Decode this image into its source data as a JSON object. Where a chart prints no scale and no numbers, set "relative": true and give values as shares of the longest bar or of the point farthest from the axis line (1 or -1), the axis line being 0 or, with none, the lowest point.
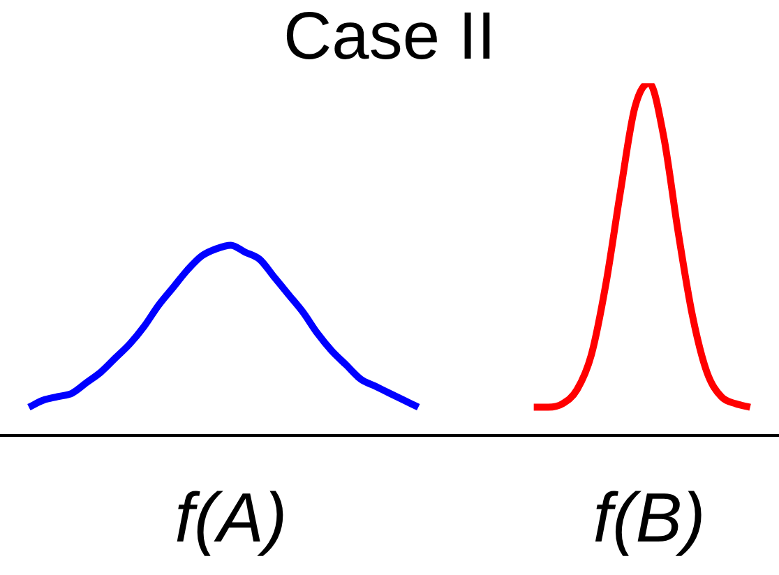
{
  "chart_data": {
    "type": "line",
    "title": "Case II",
    "relative": true,
    "marker": "none",
    "categories": [
      null,
      null,
      null,
      null,
      null,
      null,
      null,
      null,
      null,
      null,
      null,
      null,
      null,
      null,
      null,
      null,
      null,
      null,
      null,
      null,
      null,
      null,
      null,
      null,
      null,
      null,
      null,
      null,
      null,
      null,
      null,
      null,
      null,
      null,
      null,
      null,
      null,
      null,
      null,
      null,
      null,
      null,
      null,
      null,
      null,
      null,
      null,
      null,
      null,
      null,
      null,
      null,
      null,
      null,
      null
    ],
    "series": [
      {
        "name": "f(A)",
        "color": "#0000ff",
        "values": [
          null,
          null,
          0.08,
          0.1,
          0.11,
          0.12,
          0.15,
          0.18,
          0.22,
          0.26,
          0.31,
          0.37,
          0.42,
          0.47,
          0.51,
          0.53,
          0.54,
          0.52,
          0.5,
          0.45,
          0.4,
          0.35,
          0.29,
          0.24,
          0.2,
          0.16,
          0.14,
          0.12,
          0.1,
          0.08,
          null,
          null,
          null,
          null,
          null,
          null,
          null,
          null,
          null,
          null,
          null,
          null,
          null,
          null,
          null,
          null,
          null,
          null,
          null,
          null,
          null,
          null,
          null,
          null,
          null
        ]
      },
      {
        "name": "f(B)",
        "color": "#ff0000",
        "values": [
          null,
          null,
          null,
          null,
          null,
          null,
          null,
          null,
          null,
          null,
          null,
          null,
          null,
          null,
          null,
          null,
          null,
          null,
          null,
          null,
          null,
          null,
          null,
          null,
          null,
          null,
          null,
          null,
          null,
          null,
          null,
          null,
          null,
          null,
          null,
          null,
          null,
          0.08,
          0.08,
          0.09,
          0.13,
          0.23,
          0.43,
          0.69,
          0.93,
          1,
          0.85,
          0.58,
          0.34,
          0.18,
          0.11,
          0.09,
          0.08,
          null,
          null
        ]
      }
    ]
  }
}
